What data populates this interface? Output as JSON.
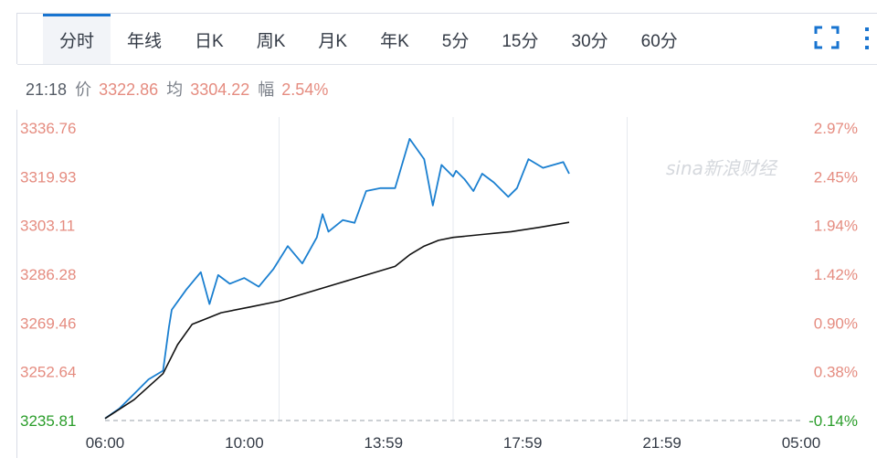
{
  "tabs": [
    {
      "label": "分时",
      "active": true
    },
    {
      "label": "年线"
    },
    {
      "label": "日K"
    },
    {
      "label": "周K"
    },
    {
      "label": "月K"
    },
    {
      "label": "年K"
    },
    {
      "label": "5分"
    },
    {
      "label": "15分"
    },
    {
      "label": "30分"
    },
    {
      "label": "60分"
    }
  ],
  "controls": {
    "fullscreen_icon": "expand-icon",
    "more_icon": "vertical-dots-icon"
  },
  "quote": {
    "time": "21:18",
    "price_label": "价",
    "price": "3322.86",
    "avg_label": "均",
    "avg": "3304.22",
    "range_label": "幅",
    "range": "2.54%"
  },
  "watermark": "sina新浪财经",
  "colors": {
    "price_line": "#1a7fd0",
    "avg_line": "#111111",
    "up": "#e58c80",
    "base": "#2a9d2a",
    "axis_text": "#e58c80"
  },
  "chart_data": {
    "type": "line",
    "x_tick_labels": [
      "06:00",
      "10:00",
      "13:59",
      "17:59",
      "21:59",
      "05:00"
    ],
    "y_tick_labels": [
      "3336.76",
      "3319.93",
      "3303.11",
      "3286.28",
      "3269.46",
      "3252.64",
      "3235.81"
    ],
    "y_pct_labels": [
      "2.97%",
      "2.45%",
      "1.94%",
      "1.42%",
      "0.90%",
      "0.38%",
      "-0.14%"
    ],
    "ylim": [
      3235.81,
      3336.76
    ],
    "base_value": 3235.81,
    "x_range_hours": [
      0,
      24
    ],
    "series": [
      {
        "key": "price",
        "x": [
          0,
          0.5,
          1,
          1.5,
          2,
          2.2,
          2.3,
          2.8,
          3.3,
          3.6,
          3.9,
          4.3,
          4.8,
          5.3,
          5.8,
          6.3,
          6.8,
          7.3,
          7.5,
          7.7,
          8.2,
          8.6,
          9.0,
          9.5,
          10.0,
          10.5,
          11.0,
          11.3,
          11.6,
          12.0,
          12.1,
          12.4,
          12.7,
          13.0,
          13.4,
          13.9,
          14.2,
          14.6,
          15.1,
          15.8,
          16.0
        ],
        "values": [
          3236.5,
          3240,
          3245,
          3250,
          3253,
          3268,
          3274,
          3281,
          3287,
          3276,
          3286,
          3283,
          3285,
          3282,
          3288,
          3296,
          3290,
          3299,
          3307,
          3301,
          3305,
          3304,
          3315,
          3316,
          3316,
          3333,
          3326,
          3310,
          3324,
          3320,
          3322,
          3319,
          3315,
          3321,
          3318,
          3313,
          3316,
          3326,
          3323,
          3325,
          3321
        ]
      },
      {
        "key": "avg",
        "x": [
          0,
          1,
          2,
          2.5,
          3,
          3.5,
          4,
          5,
          6,
          7,
          8,
          9,
          10,
          10.5,
          11,
          11.5,
          12,
          13,
          14,
          15,
          16
        ],
        "values": [
          3236.5,
          3243,
          3252,
          3262,
          3269,
          3271,
          3273,
          3275,
          3277,
          3280,
          3283,
          3286,
          3289,
          3293,
          3296,
          3298,
          3299,
          3300,
          3301,
          3302.5,
          3304.2
        ]
      }
    ]
  }
}
